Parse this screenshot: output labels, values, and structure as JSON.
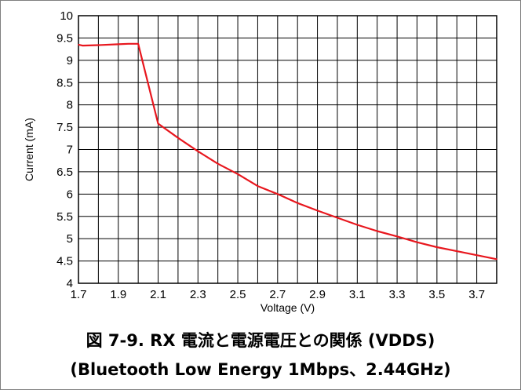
{
  "chart_data": {
    "type": "line",
    "xlabel": "Voltage (V)",
    "ylabel": "Current (mA)",
    "xlim": [
      1.7,
      3.8
    ],
    "ylim": [
      4,
      10
    ],
    "x_ticks": [
      1.7,
      1.9,
      2.1,
      2.3,
      2.5,
      2.7,
      2.9,
      3.1,
      3.3,
      3.5,
      3.7
    ],
    "x_tick_labels": [
      "1.7",
      "1.9",
      "2.1",
      "2.3",
      "2.5",
      "2.7",
      "2.9",
      "3.1",
      "3.3",
      "3.5",
      "3.7"
    ],
    "y_ticks": [
      4,
      4.5,
      5,
      5.5,
      6,
      6.5,
      7,
      7.5,
      8,
      8.5,
      9,
      9.5,
      10
    ],
    "y_tick_labels": [
      "4",
      "4.5",
      "5",
      "5.5",
      "6",
      "6.5",
      "7",
      "7.5",
      "8",
      "8.5",
      "9",
      "9.5",
      "10"
    ],
    "grid": true,
    "series": [
      {
        "color": "#e8171e",
        "x": [
          1.7,
          1.72,
          1.8,
          1.9,
          1.95,
          2.0,
          2.1,
          2.2,
          2.3,
          2.4,
          2.5,
          2.6,
          2.7,
          2.8,
          2.9,
          3.0,
          3.1,
          3.2,
          3.3,
          3.4,
          3.5,
          3.6,
          3.7,
          3.8
        ],
        "y": [
          9.35,
          9.33,
          9.34,
          9.36,
          9.37,
          9.37,
          7.58,
          7.26,
          6.96,
          6.68,
          6.45,
          6.18,
          6.0,
          5.8,
          5.63,
          5.47,
          5.31,
          5.17,
          5.05,
          4.92,
          4.81,
          4.72,
          4.63,
          4.54
        ]
      }
    ]
  },
  "caption": {
    "line1": "図 7-9. RX 電流と電源電圧との関係 (VDDS)",
    "line2": "(Bluetooth Low Energy 1Mbps、2.44GHz)"
  }
}
